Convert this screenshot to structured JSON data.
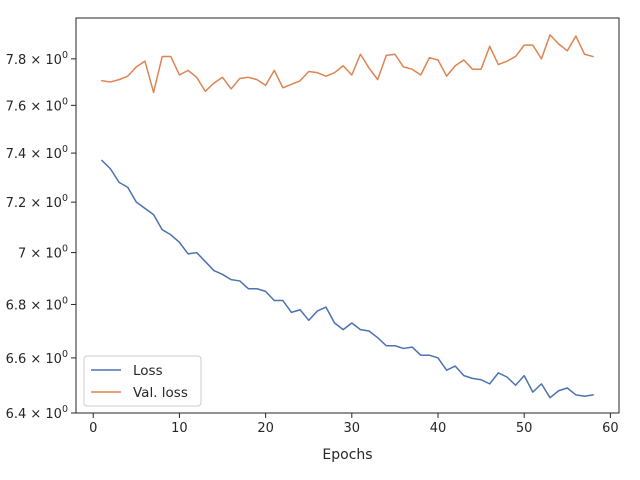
{
  "chart_data": {
    "type": "line",
    "title": "",
    "xlabel": "Epochs",
    "ylabel": "",
    "yscale": "log",
    "xlim": [
      -2,
      61
    ],
    "ylim": [
      6.4,
      7.98
    ],
    "grid": false,
    "legend_position": "lower-left",
    "x_ticks": [
      0,
      10,
      20,
      30,
      40,
      50,
      60
    ],
    "x_tick_labels": [
      "0",
      "10",
      "20",
      "30",
      "40",
      "50",
      "60"
    ],
    "y_ticks": [
      6.4,
      6.6,
      6.8,
      7.0,
      7.2,
      7.4,
      7.6,
      7.8
    ],
    "y_tick_labels": [
      {
        "mantissa": "6.4",
        "base": "10",
        "exp": "0"
      },
      {
        "mantissa": "6.6",
        "base": "10",
        "exp": "0"
      },
      {
        "mantissa": "6.8",
        "base": "10",
        "exp": "0"
      },
      {
        "mantissa": "7",
        "base": "10",
        "exp": "0"
      },
      {
        "mantissa": "7.2",
        "base": "10",
        "exp": "0"
      },
      {
        "mantissa": "7.4",
        "base": "10",
        "exp": "0"
      },
      {
        "mantissa": "7.6",
        "base": "10",
        "exp": "0"
      },
      {
        "mantissa": "7.8",
        "base": "10",
        "exp": "0"
      }
    ],
    "series": [
      {
        "name": "Loss",
        "color": "#4c72b0",
        "x": [
          1,
          2,
          3,
          4,
          5,
          6,
          7,
          8,
          9,
          10,
          11,
          12,
          13,
          14,
          15,
          16,
          17,
          18,
          19,
          20,
          21,
          22,
          23,
          24,
          25,
          26,
          27,
          28,
          29,
          30,
          31,
          32,
          33,
          34,
          35,
          36,
          37,
          38,
          39,
          40,
          41,
          42,
          43,
          44,
          45,
          46,
          47,
          48,
          49,
          50,
          51,
          52,
          53,
          54,
          55,
          56,
          57,
          58
        ],
        "y": [
          7.37,
          7.335,
          7.28,
          7.26,
          7.2,
          7.175,
          7.15,
          7.09,
          7.07,
          7.04,
          6.995,
          7.0,
          6.965,
          6.93,
          6.915,
          6.895,
          6.89,
          6.86,
          6.86,
          6.85,
          6.815,
          6.815,
          6.77,
          6.78,
          6.74,
          6.775,
          6.79,
          6.73,
          6.705,
          6.73,
          6.705,
          6.7,
          6.675,
          6.645,
          6.645,
          6.635,
          6.64,
          6.61,
          6.61,
          6.6,
          6.555,
          6.57,
          6.535,
          6.525,
          6.52,
          6.505,
          6.545,
          6.53,
          6.5,
          6.535,
          6.475,
          6.505,
          6.455,
          6.48,
          6.49,
          6.465,
          6.46,
          6.465
        ]
      },
      {
        "name": "Val. loss",
        "color": "#dd8452",
        "x": [
          1,
          2,
          3,
          4,
          5,
          6,
          7,
          8,
          9,
          10,
          11,
          12,
          13,
          14,
          15,
          16,
          17,
          18,
          19,
          20,
          21,
          22,
          23,
          24,
          25,
          26,
          27,
          28,
          29,
          30,
          31,
          32,
          33,
          34,
          35,
          36,
          37,
          38,
          39,
          40,
          41,
          42,
          43,
          44,
          45,
          46,
          47,
          48,
          49,
          50,
          51,
          52,
          53,
          54,
          55,
          56,
          57,
          58
        ],
        "y": [
          7.705,
          7.7,
          7.71,
          7.725,
          7.765,
          7.79,
          7.655,
          7.81,
          7.81,
          7.73,
          7.75,
          7.72,
          7.66,
          7.695,
          7.72,
          7.67,
          7.715,
          7.72,
          7.71,
          7.685,
          7.75,
          7.675,
          7.69,
          7.705,
          7.745,
          7.74,
          7.725,
          7.74,
          7.77,
          7.73,
          7.82,
          7.76,
          7.71,
          7.815,
          7.82,
          7.765,
          7.755,
          7.73,
          7.805,
          7.795,
          7.725,
          7.77,
          7.795,
          7.755,
          7.755,
          7.855,
          7.775,
          7.79,
          7.81,
          7.86,
          7.86,
          7.8,
          7.905,
          7.865,
          7.835,
          7.9,
          7.82,
          7.81
        ]
      }
    ]
  }
}
